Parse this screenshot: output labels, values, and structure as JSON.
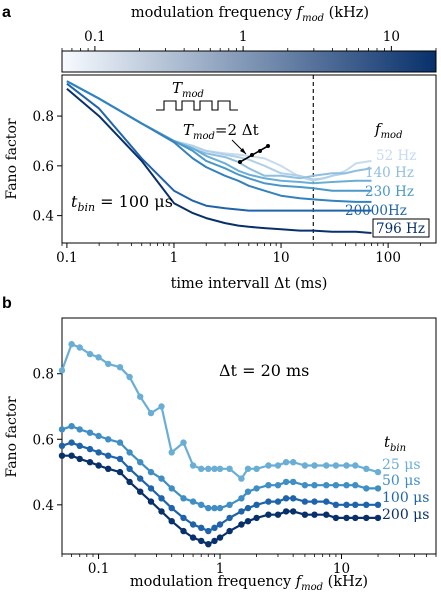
{
  "figure": {
    "panel_a_letter": "a",
    "panel_b_letter": "b"
  },
  "chart_data": [
    {
      "type": "line",
      "panel": "a",
      "xlabel": "time intervall Δt (ms)",
      "ylabel": "Fano factor",
      "xscale": "log",
      "xlim": [
        0.09,
        280
      ],
      "ylim": [
        0.29,
        0.965
      ],
      "xticks": [
        0.1,
        1,
        10,
        100
      ],
      "xtick_labels": [
        "0.1",
        "1",
        "10",
        "100"
      ],
      "yticks": [
        0.4,
        0.6,
        0.8
      ],
      "ytick_labels": [
        "0.4",
        "0.6",
        "0.8"
      ],
      "colorbar": {
        "label_main": "modulation frequency ",
        "label_symbol": "f",
        "label_sub": "mod",
        "label_unit": " (kHz)",
        "ticks": [
          0.1,
          1,
          10
        ],
        "tick_labels": [
          "0.1",
          "1",
          "10"
        ],
        "colors": [
          "#f7fbff",
          "#08306b"
        ]
      },
      "vline_x": 20,
      "legend_title_symbol": "f",
      "legend_title_sub": "mod",
      "annotations": {
        "tmod_symbol": "T",
        "tmod_sub": "mod",
        "tmod_eq_symbol": "T",
        "tmod_eq_sub": "mod",
        "tmod_eq_rest": "=2 Δt",
        "tbin_symbol": "t",
        "tbin_sub": "bin",
        "tbin_rest": " = 100 μs"
      },
      "series": [
        {
          "name": "52 Hz",
          "color": "#c6dbef",
          "x": [
            0.1,
            0.2,
            0.5,
            1,
            1.5,
            2,
            3,
            4,
            5,
            7,
            10,
            12,
            15,
            20,
            25,
            30,
            40,
            50,
            70
          ],
          "y": [
            0.94,
            0.87,
            0.77,
            0.7,
            0.68,
            0.66,
            0.65,
            0.645,
            0.64,
            0.63,
            0.6,
            0.58,
            0.555,
            0.54,
            0.55,
            0.56,
            0.58,
            0.61,
            0.62
          ]
        },
        {
          "name": "",
          "color": "#b0d0e7",
          "x": [
            0.1,
            0.2,
            0.5,
            1,
            1.5,
            2,
            3,
            4,
            5,
            7,
            10,
            15,
            20,
            25,
            30,
            40,
            50,
            70
          ],
          "y": [
            0.94,
            0.87,
            0.77,
            0.7,
            0.68,
            0.66,
            0.645,
            0.635,
            0.625,
            0.6,
            0.57,
            0.56,
            0.545,
            0.55,
            0.56,
            0.57,
            0.58,
            0.59
          ]
        },
        {
          "name": "140 Hz",
          "color": "#8fbfe0",
          "x": [
            0.1,
            0.2,
            0.5,
            1,
            1.5,
            2,
            3,
            4,
            5,
            7,
            10,
            15,
            20,
            30,
            40,
            50,
            70
          ],
          "y": [
            0.94,
            0.87,
            0.77,
            0.7,
            0.67,
            0.65,
            0.635,
            0.615,
            0.59,
            0.56,
            0.56,
            0.55,
            0.56,
            0.57,
            0.57,
            0.58,
            0.59
          ]
        },
        {
          "name": "",
          "color": "#6aaed6",
          "x": [
            0.1,
            0.2,
            0.5,
            1,
            1.5,
            2,
            3,
            4,
            5,
            7,
            10,
            15,
            20,
            30,
            50,
            70
          ],
          "y": [
            0.94,
            0.87,
            0.77,
            0.7,
            0.67,
            0.64,
            0.61,
            0.58,
            0.565,
            0.55,
            0.54,
            0.535,
            0.53,
            0.535,
            0.54,
            0.54
          ]
        },
        {
          "name": "230 Hz",
          "color": "#4a98c9",
          "x": [
            0.1,
            0.2,
            0.5,
            1,
            1.5,
            2,
            3,
            4,
            5,
            7,
            10,
            15,
            20,
            30,
            50,
            70
          ],
          "y": [
            0.94,
            0.87,
            0.77,
            0.7,
            0.66,
            0.62,
            0.59,
            0.565,
            0.55,
            0.53,
            0.52,
            0.515,
            0.51,
            0.5,
            0.5,
            0.5
          ]
        },
        {
          "name": "",
          "color": "#3282be",
          "x": [
            0.1,
            0.2,
            0.5,
            1,
            1.5,
            2,
            3,
            4,
            5,
            7,
            10,
            15,
            20,
            30,
            50,
            70
          ],
          "y": [
            0.94,
            0.87,
            0.77,
            0.695,
            0.63,
            0.595,
            0.56,
            0.54,
            0.52,
            0.5,
            0.48,
            0.47,
            0.465,
            0.46,
            0.455,
            0.455
          ]
        },
        {
          "name": "20000Hz",
          "color": "#1f64aa",
          "x": [
            0.1,
            0.2,
            0.5,
            1,
            1.5,
            2,
            3,
            5,
            7,
            10,
            15,
            20,
            30,
            50,
            70
          ],
          "y": [
            0.93,
            0.83,
            0.63,
            0.5,
            0.46,
            0.44,
            0.43,
            0.42,
            0.42,
            0.42,
            0.42,
            0.42,
            0.42,
            0.42,
            0.42
          ]
        },
        {
          "name": "796 Hz",
          "color": "#08306b",
          "x": [
            0.1,
            0.2,
            0.5,
            1,
            1.5,
            2,
            3,
            4,
            5,
            7,
            10,
            15,
            20,
            30,
            50,
            70
          ],
          "y": [
            0.91,
            0.8,
            0.62,
            0.45,
            0.41,
            0.39,
            0.37,
            0.36,
            0.355,
            0.35,
            0.345,
            0.34,
            0.34,
            0.335,
            0.335,
            0.33
          ]
        }
      ]
    },
    {
      "type": "line",
      "panel": "b",
      "xlabel_main": "modulation frequency ",
      "xlabel_symbol": "f",
      "xlabel_sub": "mod",
      "xlabel_unit": " (kHz)",
      "ylabel": "Fano factor",
      "xscale": "log",
      "xlim": [
        0.05,
        60
      ],
      "ylim": [
        0.25,
        0.97
      ],
      "xticks": [
        0.1,
        1,
        10
      ],
      "xtick_labels": [
        "0.1",
        "1",
        "10"
      ],
      "yticks": [
        0.4,
        0.6,
        0.8
      ],
      "ytick_labels": [
        "0.4",
        "0.6",
        "0.8"
      ],
      "annotation": "Δt = 20 ms",
      "legend_title_symbol": "t",
      "legend_title_sub": "bin",
      "x": [
        0.05,
        0.06,
        0.07,
        0.085,
        0.1,
        0.12,
        0.15,
        0.18,
        0.22,
        0.27,
        0.33,
        0.4,
        0.5,
        0.6,
        0.7,
        0.8,
        0.9,
        1.0,
        1.2,
        1.5,
        1.7,
        2.0,
        2.5,
        3.0,
        3.5,
        4.0,
        5.0,
        6.0,
        7.5,
        9.0,
        11,
        13,
        16,
        20
      ],
      "series": [
        {
          "name": "25 μs",
          "color": "#6aaed6",
          "y": [
            0.81,
            0.89,
            0.88,
            0.86,
            0.85,
            0.83,
            0.82,
            0.79,
            0.73,
            0.68,
            0.7,
            0.56,
            0.59,
            0.52,
            0.51,
            0.51,
            0.51,
            0.51,
            0.51,
            0.48,
            0.51,
            0.51,
            0.52,
            0.52,
            0.53,
            0.53,
            0.52,
            0.52,
            0.52,
            0.52,
            0.52,
            0.52,
            0.51,
            0.5
          ]
        },
        {
          "name": "50 μs",
          "color": "#3f8fc5",
          "y": [
            0.63,
            0.64,
            0.63,
            0.62,
            0.61,
            0.6,
            0.59,
            0.56,
            0.53,
            0.5,
            0.48,
            0.45,
            0.42,
            0.41,
            0.4,
            0.39,
            0.39,
            0.39,
            0.4,
            0.42,
            0.44,
            0.45,
            0.46,
            0.46,
            0.47,
            0.47,
            0.46,
            0.46,
            0.46,
            0.46,
            0.46,
            0.46,
            0.45,
            0.45
          ]
        },
        {
          "name": "100 μs",
          "color": "#1f64aa",
          "y": [
            0.58,
            0.59,
            0.58,
            0.57,
            0.56,
            0.55,
            0.54,
            0.51,
            0.48,
            0.45,
            0.42,
            0.39,
            0.36,
            0.34,
            0.33,
            0.32,
            0.33,
            0.34,
            0.36,
            0.38,
            0.39,
            0.4,
            0.41,
            0.41,
            0.42,
            0.42,
            0.41,
            0.41,
            0.41,
            0.4,
            0.4,
            0.4,
            0.4,
            0.4
          ]
        },
        {
          "name": "200 μs",
          "color": "#08306b",
          "y": [
            0.55,
            0.55,
            0.54,
            0.53,
            0.52,
            0.51,
            0.5,
            0.47,
            0.44,
            0.41,
            0.38,
            0.35,
            0.32,
            0.3,
            0.29,
            0.28,
            0.29,
            0.3,
            0.32,
            0.34,
            0.35,
            0.36,
            0.37,
            0.37,
            0.38,
            0.38,
            0.37,
            0.37,
            0.37,
            0.36,
            0.36,
            0.36,
            0.36,
            0.36
          ]
        }
      ]
    }
  ]
}
